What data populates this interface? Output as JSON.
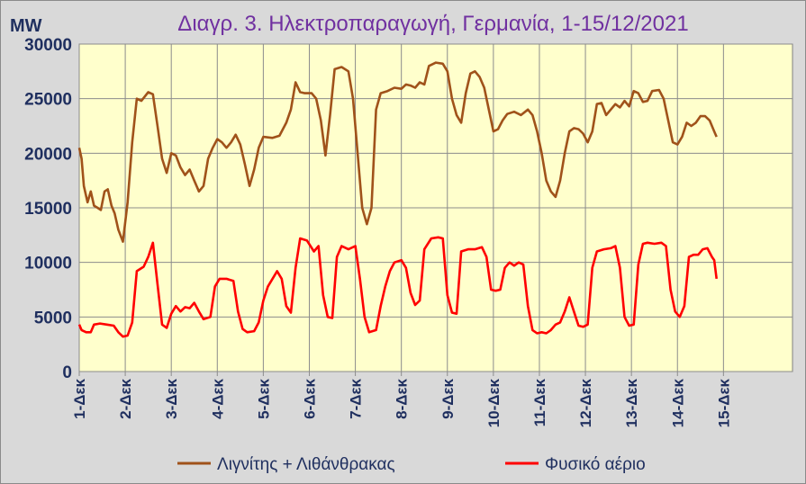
{
  "chart_data": {
    "type": "line",
    "title": "Διαγρ. 3. Ηλεκτροπαραγωγή, Γερμανία, 1-15/12/2021",
    "ylabel": "MW",
    "xlabel": "",
    "ylim": [
      0,
      30000
    ],
    "yticks": [
      0,
      5000,
      10000,
      15000,
      20000,
      25000,
      30000
    ],
    "xlim": [
      0,
      15
    ],
    "categories": [
      "1-Δεκ",
      "2-Δεκ",
      "3-Δεκ",
      "4-Δεκ",
      "5-Δεκ",
      "6-Δεκ",
      "7-Δεκ",
      "8-Δεκ",
      "9-Δεκ",
      "10-Δεκ",
      "11-Δεκ",
      "12-Δεκ",
      "13-Δεκ",
      "14-Δεκ",
      "15-Δεκ"
    ],
    "grid": true,
    "legend": "bottom",
    "background": "#ffffcc",
    "series": [
      {
        "name": "Λιγνίτης + Λιθάνθρακας",
        "color": "#a0521a",
        "points": [
          [
            0.0,
            20500
          ],
          [
            0.05,
            19500
          ],
          [
            0.1,
            17000
          ],
          [
            0.18,
            15500
          ],
          [
            0.25,
            16500
          ],
          [
            0.32,
            15200
          ],
          [
            0.4,
            15000
          ],
          [
            0.47,
            14800
          ],
          [
            0.55,
            16500
          ],
          [
            0.62,
            16700
          ],
          [
            0.7,
            15200
          ],
          [
            0.77,
            14500
          ],
          [
            0.85,
            13000
          ],
          [
            0.95,
            11900
          ],
          [
            1.05,
            15500
          ],
          [
            1.15,
            21000
          ],
          [
            1.25,
            25000
          ],
          [
            1.35,
            24800
          ],
          [
            1.5,
            25600
          ],
          [
            1.6,
            25400
          ],
          [
            1.7,
            22500
          ],
          [
            1.8,
            19500
          ],
          [
            1.9,
            18200
          ],
          [
            2.0,
            20000
          ],
          [
            2.1,
            19800
          ],
          [
            2.2,
            18700
          ],
          [
            2.3,
            18000
          ],
          [
            2.4,
            18500
          ],
          [
            2.5,
            17500
          ],
          [
            2.6,
            16500
          ],
          [
            2.7,
            17000
          ],
          [
            2.8,
            19500
          ],
          [
            2.9,
            20500
          ],
          [
            3.0,
            21300
          ],
          [
            3.1,
            21000
          ],
          [
            3.2,
            20500
          ],
          [
            3.3,
            21000
          ],
          [
            3.4,
            21700
          ],
          [
            3.5,
            20800
          ],
          [
            3.6,
            19000
          ],
          [
            3.7,
            17000
          ],
          [
            3.8,
            18500
          ],
          [
            3.9,
            20500
          ],
          [
            4.0,
            21500
          ],
          [
            4.2,
            21400
          ],
          [
            4.35,
            21600
          ],
          [
            4.5,
            22800
          ],
          [
            4.6,
            24000
          ],
          [
            4.7,
            26500
          ],
          [
            4.8,
            25600
          ],
          [
            4.9,
            25500
          ],
          [
            5.05,
            25500
          ],
          [
            5.15,
            25000
          ],
          [
            5.25,
            23000
          ],
          [
            5.35,
            19800
          ],
          [
            5.45,
            23500
          ],
          [
            5.55,
            27700
          ],
          [
            5.7,
            27900
          ],
          [
            5.85,
            27500
          ],
          [
            5.95,
            25000
          ],
          [
            6.05,
            20000
          ],
          [
            6.15,
            15000
          ],
          [
            6.25,
            13500
          ],
          [
            6.35,
            15000
          ],
          [
            6.45,
            24000
          ],
          [
            6.55,
            25500
          ],
          [
            6.7,
            25700
          ],
          [
            6.85,
            26000
          ],
          [
            7.0,
            25900
          ],
          [
            7.1,
            26300
          ],
          [
            7.2,
            26200
          ],
          [
            7.3,
            26000
          ],
          [
            7.4,
            26500
          ],
          [
            7.5,
            26300
          ],
          [
            7.6,
            28000
          ],
          [
            7.75,
            28300
          ],
          [
            7.9,
            28200
          ],
          [
            8.0,
            27500
          ],
          [
            8.1,
            25000
          ],
          [
            8.2,
            23500
          ],
          [
            8.3,
            22800
          ],
          [
            8.4,
            25500
          ],
          [
            8.5,
            27300
          ],
          [
            8.6,
            27500
          ],
          [
            8.7,
            27000
          ],
          [
            8.8,
            26000
          ],
          [
            8.9,
            24000
          ],
          [
            9.0,
            22000
          ],
          [
            9.1,
            22200
          ],
          [
            9.2,
            23000
          ],
          [
            9.3,
            23600
          ],
          [
            9.45,
            23800
          ],
          [
            9.6,
            23500
          ],
          [
            9.75,
            24000
          ],
          [
            9.85,
            23500
          ],
          [
            9.95,
            22000
          ],
          [
            10.05,
            20000
          ],
          [
            10.15,
            17500
          ],
          [
            10.25,
            16500
          ],
          [
            10.35,
            16000
          ],
          [
            10.45,
            17500
          ],
          [
            10.55,
            20000
          ],
          [
            10.65,
            22000
          ],
          [
            10.75,
            22300
          ],
          [
            10.85,
            22200
          ],
          [
            10.95,
            21800
          ],
          [
            11.05,
            21000
          ],
          [
            11.15,
            22000
          ],
          [
            11.25,
            24500
          ],
          [
            11.35,
            24600
          ],
          [
            11.45,
            23500
          ],
          [
            11.55,
            24000
          ],
          [
            11.65,
            24500
          ],
          [
            11.75,
            24200
          ],
          [
            11.85,
            24800
          ],
          [
            11.95,
            24300
          ],
          [
            12.05,
            25700
          ],
          [
            12.15,
            25500
          ],
          [
            12.25,
            24700
          ],
          [
            12.35,
            24800
          ],
          [
            12.45,
            25700
          ],
          [
            12.6,
            25800
          ],
          [
            12.7,
            25000
          ],
          [
            12.8,
            23000
          ],
          [
            12.9,
            21000
          ],
          [
            13.0,
            20800
          ],
          [
            13.1,
            21500
          ],
          [
            13.2,
            22800
          ],
          [
            13.3,
            22500
          ],
          [
            13.4,
            22800
          ],
          [
            13.5,
            23400
          ],
          [
            13.6,
            23400
          ],
          [
            13.7,
            23000
          ],
          [
            13.8,
            22000
          ],
          [
            13.85,
            21500
          ]
        ]
      },
      {
        "name": "Φυσικό αέριο",
        "color": "#ff0000",
        "points": [
          [
            0.0,
            4300
          ],
          [
            0.05,
            3800
          ],
          [
            0.15,
            3600
          ],
          [
            0.25,
            3600
          ],
          [
            0.32,
            4300
          ],
          [
            0.45,
            4400
          ],
          [
            0.6,
            4300
          ],
          [
            0.75,
            4200
          ],
          [
            0.85,
            3600
          ],
          [
            0.95,
            3200
          ],
          [
            1.05,
            3300
          ],
          [
            1.15,
            4500
          ],
          [
            1.25,
            9200
          ],
          [
            1.4,
            9600
          ],
          [
            1.5,
            10500
          ],
          [
            1.6,
            11800
          ],
          [
            1.7,
            8000
          ],
          [
            1.8,
            4300
          ],
          [
            1.9,
            4000
          ],
          [
            2.0,
            5300
          ],
          [
            2.1,
            6000
          ],
          [
            2.2,
            5500
          ],
          [
            2.3,
            5900
          ],
          [
            2.4,
            5800
          ],
          [
            2.5,
            6300
          ],
          [
            2.6,
            5500
          ],
          [
            2.7,
            4800
          ],
          [
            2.85,
            5000
          ],
          [
            2.95,
            7800
          ],
          [
            3.05,
            8500
          ],
          [
            3.2,
            8500
          ],
          [
            3.35,
            8300
          ],
          [
            3.45,
            5500
          ],
          [
            3.55,
            3900
          ],
          [
            3.65,
            3600
          ],
          [
            3.8,
            3700
          ],
          [
            3.9,
            4500
          ],
          [
            4.0,
            6500
          ],
          [
            4.1,
            7800
          ],
          [
            4.2,
            8500
          ],
          [
            4.3,
            9200
          ],
          [
            4.4,
            8500
          ],
          [
            4.5,
            6000
          ],
          [
            4.6,
            5400
          ],
          [
            4.7,
            9500
          ],
          [
            4.8,
            12200
          ],
          [
            4.95,
            12000
          ],
          [
            5.1,
            11000
          ],
          [
            5.2,
            11500
          ],
          [
            5.3,
            7000
          ],
          [
            5.4,
            5000
          ],
          [
            5.5,
            4900
          ],
          [
            5.6,
            10500
          ],
          [
            5.7,
            11500
          ],
          [
            5.85,
            11200
          ],
          [
            6.0,
            11500
          ],
          [
            6.1,
            8500
          ],
          [
            6.2,
            5000
          ],
          [
            6.3,
            3600
          ],
          [
            6.45,
            3800
          ],
          [
            6.55,
            6000
          ],
          [
            6.65,
            7800
          ],
          [
            6.75,
            9200
          ],
          [
            6.85,
            10000
          ],
          [
            7.0,
            10200
          ],
          [
            7.1,
            9500
          ],
          [
            7.2,
            7200
          ],
          [
            7.3,
            6100
          ],
          [
            7.4,
            6500
          ],
          [
            7.5,
            11200
          ],
          [
            7.65,
            12200
          ],
          [
            7.8,
            12300
          ],
          [
            7.9,
            12200
          ],
          [
            8.0,
            7000
          ],
          [
            8.1,
            5400
          ],
          [
            8.2,
            5300
          ],
          [
            8.3,
            11000
          ],
          [
            8.45,
            11200
          ],
          [
            8.6,
            11200
          ],
          [
            8.75,
            11400
          ],
          [
            8.85,
            10500
          ],
          [
            8.95,
            7500
          ],
          [
            9.05,
            7400
          ],
          [
            9.15,
            7500
          ],
          [
            9.25,
            9500
          ],
          [
            9.35,
            10000
          ],
          [
            9.45,
            9700
          ],
          [
            9.55,
            10000
          ],
          [
            9.65,
            9800
          ],
          [
            9.75,
            6000
          ],
          [
            9.85,
            3800
          ],
          [
            9.95,
            3500
          ],
          [
            10.05,
            3600
          ],
          [
            10.15,
            3500
          ],
          [
            10.25,
            3800
          ],
          [
            10.35,
            4300
          ],
          [
            10.45,
            4500
          ],
          [
            10.55,
            5500
          ],
          [
            10.65,
            6800
          ],
          [
            10.75,
            5500
          ],
          [
            10.85,
            4200
          ],
          [
            10.95,
            4100
          ],
          [
            11.05,
            4300
          ],
          [
            11.15,
            9500
          ],
          [
            11.25,
            11000
          ],
          [
            11.4,
            11200
          ],
          [
            11.55,
            11300
          ],
          [
            11.65,
            11500
          ],
          [
            11.75,
            9500
          ],
          [
            11.85,
            5000
          ],
          [
            11.95,
            4200
          ],
          [
            12.05,
            4300
          ],
          [
            12.15,
            9800
          ],
          [
            12.25,
            11700
          ],
          [
            12.35,
            11800
          ],
          [
            12.5,
            11700
          ],
          [
            12.65,
            11800
          ],
          [
            12.75,
            11500
          ],
          [
            12.85,
            7500
          ],
          [
            12.95,
            5500
          ],
          [
            13.05,
            5000
          ],
          [
            13.15,
            6000
          ],
          [
            13.25,
            10500
          ],
          [
            13.35,
            10700
          ],
          [
            13.45,
            10700
          ],
          [
            13.55,
            11200
          ],
          [
            13.65,
            11300
          ],
          [
            13.75,
            10500
          ],
          [
            13.8,
            10200
          ],
          [
            13.85,
            8500
          ]
        ]
      }
    ]
  }
}
